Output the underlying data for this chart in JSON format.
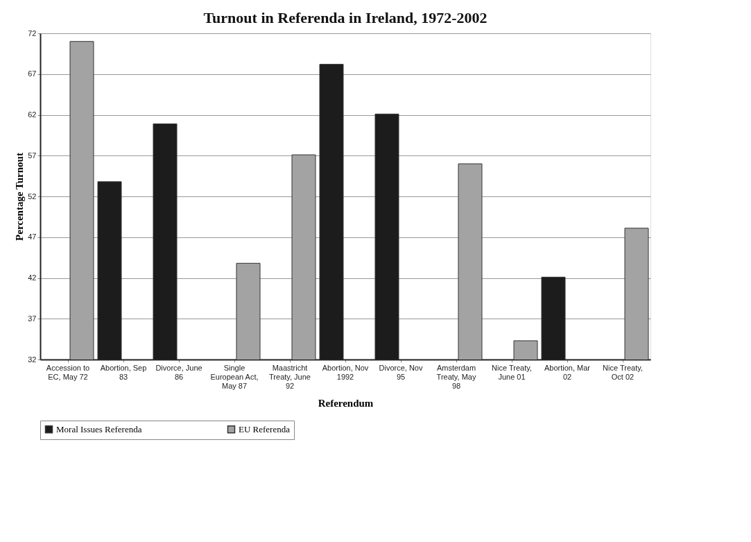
{
  "chart_data": {
    "type": "bar",
    "title": "Turnout in Referenda in Ireland, 1972-2002",
    "xlabel": "Referendum",
    "ylabel": "Percentage Turnout",
    "categories": [
      "Accession to EC, May 72",
      "Abortion, Sep 83",
      "Divorce, June 86",
      "Single European Act, May 87",
      "Maastricht Treaty, June 92",
      "Abortion, Nov 1992",
      "Divorce, Nov 95",
      "Amsterdam Treaty, May 98",
      "Nice Treaty, June 01",
      "Abortion, Mar 02",
      "Nice Treaty, Oct 02"
    ],
    "series": [
      {
        "name": "Moral Issues Referenda",
        "color": "#1c1c1c",
        "values": [
          null,
          53.8,
          60.9,
          null,
          null,
          68.2,
          62.1,
          null,
          null,
          42.1,
          null
        ]
      },
      {
        "name": "EU Referenda",
        "color": "#a3a3a3",
        "values": [
          71,
          null,
          null,
          43.8,
          57.1,
          null,
          null,
          56.0,
          34.3,
          null,
          48.1
        ]
      }
    ],
    "ylim": [
      32,
      72
    ],
    "yticks": [
      32,
      37,
      42,
      47,
      52,
      57,
      62,
      67,
      72
    ],
    "grid": "y",
    "legend": "bottom"
  }
}
